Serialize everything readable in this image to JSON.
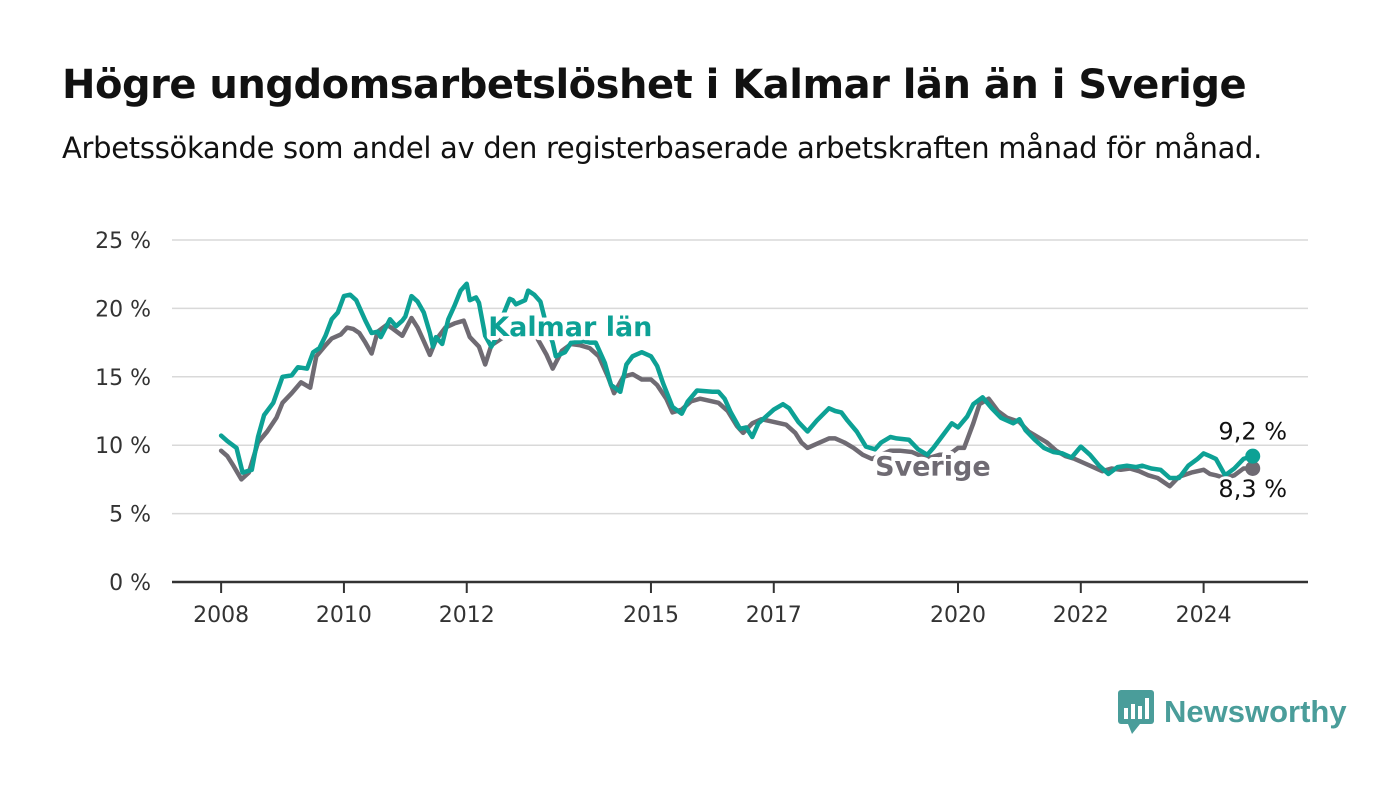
{
  "title": "Högre ungdomsarbetslöshet i Kalmar län än i Sverige",
  "subtitle": "Arbetssökande som andel av den registerbaserade arbetskraften månad för månad.",
  "brand": {
    "name": "Newsworthy",
    "color": "#4a9d9a"
  },
  "chart_data": {
    "type": "line",
    "x_tick_labels": [
      "2008",
      "2010",
      "2012",
      "2015",
      "2017",
      "2020",
      "2022",
      "2024"
    ],
    "y_tick_labels": [
      "0 %",
      "5 %",
      "10 %",
      "15 %",
      "20 %",
      "25 %"
    ],
    "ylim": [
      0,
      25
    ],
    "xlim": [
      2007.2,
      2025.7
    ],
    "grid": true,
    "series": [
      {
        "name": "Kalmar län",
        "color": "#0da195",
        "end_label": "9,2 %",
        "points": [
          [
            2008.0,
            10.7
          ],
          [
            2008.1,
            10.3
          ],
          [
            2008.25,
            9.8
          ],
          [
            2008.35,
            8.0
          ],
          [
            2008.5,
            8.2
          ],
          [
            2008.6,
            10.6
          ],
          [
            2008.7,
            12.2
          ],
          [
            2008.85,
            13.1
          ],
          [
            2009.0,
            15.0
          ],
          [
            2009.15,
            15.1
          ],
          [
            2009.25,
            15.7
          ],
          [
            2009.4,
            15.6
          ],
          [
            2009.5,
            16.8
          ],
          [
            2009.6,
            17.1
          ],
          [
            2009.7,
            18.0
          ],
          [
            2009.8,
            19.2
          ],
          [
            2009.9,
            19.7
          ],
          [
            2010.0,
            20.9
          ],
          [
            2010.1,
            21.0
          ],
          [
            2010.2,
            20.6
          ],
          [
            2010.35,
            19.1
          ],
          [
            2010.45,
            18.2
          ],
          [
            2010.55,
            18.3
          ],
          [
            2010.6,
            17.9
          ],
          [
            2010.75,
            19.2
          ],
          [
            2010.85,
            18.7
          ],
          [
            2010.95,
            19.1
          ],
          [
            2011.0,
            19.4
          ],
          [
            2011.1,
            20.9
          ],
          [
            2011.2,
            20.5
          ],
          [
            2011.3,
            19.7
          ],
          [
            2011.4,
            18.2
          ],
          [
            2011.45,
            17.2
          ],
          [
            2011.5,
            17.9
          ],
          [
            2011.6,
            17.4
          ],
          [
            2011.7,
            19.2
          ],
          [
            2011.8,
            20.2
          ],
          [
            2011.9,
            21.3
          ],
          [
            2012.0,
            21.8
          ],
          [
            2012.05,
            20.6
          ],
          [
            2012.15,
            20.8
          ],
          [
            2012.2,
            20.4
          ],
          [
            2012.3,
            18.0
          ],
          [
            2012.4,
            17.2
          ],
          [
            2012.5,
            18.0
          ],
          [
            2012.6,
            19.6
          ],
          [
            2012.7,
            20.7
          ],
          [
            2012.75,
            20.6
          ],
          [
            2012.8,
            20.3
          ],
          [
            2012.95,
            20.6
          ],
          [
            2013.0,
            21.3
          ],
          [
            2013.1,
            21.0
          ],
          [
            2013.2,
            20.5
          ],
          [
            2013.3,
            18.7
          ],
          [
            2013.4,
            17.5
          ],
          [
            2013.45,
            16.5
          ],
          [
            2013.6,
            16.8
          ],
          [
            2013.7,
            17.5
          ],
          [
            2013.9,
            17.6
          ],
          [
            2014.0,
            17.5
          ],
          [
            2014.1,
            17.5
          ],
          [
            2014.25,
            16.0
          ],
          [
            2014.35,
            14.4
          ],
          [
            2014.5,
            13.9
          ],
          [
            2014.6,
            15.9
          ],
          [
            2014.7,
            16.5
          ],
          [
            2014.85,
            16.8
          ],
          [
            2015.0,
            16.5
          ],
          [
            2015.1,
            15.8
          ],
          [
            2015.2,
            14.5
          ],
          [
            2015.35,
            12.8
          ],
          [
            2015.5,
            12.3
          ],
          [
            2015.6,
            13.2
          ],
          [
            2015.75,
            14.0
          ],
          [
            2016.0,
            13.9
          ],
          [
            2016.1,
            13.9
          ],
          [
            2016.2,
            13.4
          ],
          [
            2016.3,
            12.4
          ],
          [
            2016.45,
            11.2
          ],
          [
            2016.55,
            11.3
          ],
          [
            2016.65,
            10.6
          ],
          [
            2016.75,
            11.6
          ],
          [
            2017.0,
            12.6
          ],
          [
            2017.15,
            13.0
          ],
          [
            2017.25,
            12.7
          ],
          [
            2017.4,
            11.7
          ],
          [
            2017.55,
            11.0
          ],
          [
            2017.7,
            11.8
          ],
          [
            2017.9,
            12.7
          ],
          [
            2018.0,
            12.5
          ],
          [
            2018.1,
            12.4
          ],
          [
            2018.2,
            11.8
          ],
          [
            2018.35,
            11.0
          ],
          [
            2018.5,
            9.9
          ],
          [
            2018.65,
            9.7
          ],
          [
            2018.75,
            10.2
          ],
          [
            2018.9,
            10.6
          ],
          [
            2019.0,
            10.5
          ],
          [
            2019.2,
            10.4
          ],
          [
            2019.35,
            9.7
          ],
          [
            2019.5,
            9.3
          ],
          [
            2019.6,
            9.8
          ],
          [
            2019.75,
            10.7
          ],
          [
            2019.9,
            11.6
          ],
          [
            2020.0,
            11.3
          ],
          [
            2020.15,
            12.1
          ],
          [
            2020.25,
            13.0
          ],
          [
            2020.4,
            13.5
          ],
          [
            2020.55,
            12.7
          ],
          [
            2020.7,
            12.0
          ],
          [
            2020.9,
            11.6
          ],
          [
            2021.0,
            11.9
          ],
          [
            2021.1,
            11.1
          ],
          [
            2021.25,
            10.4
          ],
          [
            2021.4,
            9.8
          ],
          [
            2021.55,
            9.5
          ],
          [
            2021.7,
            9.4
          ],
          [
            2021.85,
            9.1
          ],
          [
            2022.0,
            9.9
          ],
          [
            2022.15,
            9.3
          ],
          [
            2022.3,
            8.5
          ],
          [
            2022.45,
            7.9
          ],
          [
            2022.6,
            8.4
          ],
          [
            2022.75,
            8.5
          ],
          [
            2022.9,
            8.4
          ],
          [
            2023.0,
            8.5
          ],
          [
            2023.15,
            8.3
          ],
          [
            2023.3,
            8.2
          ],
          [
            2023.45,
            7.6
          ],
          [
            2023.6,
            7.6
          ],
          [
            2023.75,
            8.5
          ],
          [
            2023.9,
            9.0
          ],
          [
            2024.0,
            9.4
          ],
          [
            2024.1,
            9.2
          ],
          [
            2024.2,
            9.0
          ],
          [
            2024.35,
            7.8
          ],
          [
            2024.5,
            8.3
          ],
          [
            2024.65,
            9.0
          ],
          [
            2024.8,
            9.2
          ]
        ]
      },
      {
        "name": "Sverige",
        "color": "#6f6b73",
        "end_label": "8,3 %",
        "points": [
          [
            2008.0,
            9.6
          ],
          [
            2008.1,
            9.2
          ],
          [
            2008.2,
            8.5
          ],
          [
            2008.33,
            7.5
          ],
          [
            2008.45,
            8.0
          ],
          [
            2008.6,
            10.2
          ],
          [
            2008.75,
            11.0
          ],
          [
            2008.9,
            12.0
          ],
          [
            2009.0,
            13.1
          ],
          [
            2009.15,
            13.8
          ],
          [
            2009.3,
            14.6
          ],
          [
            2009.45,
            14.2
          ],
          [
            2009.55,
            16.5
          ],
          [
            2009.7,
            17.3
          ],
          [
            2009.8,
            17.8
          ],
          [
            2009.95,
            18.1
          ],
          [
            2010.05,
            18.6
          ],
          [
            2010.15,
            18.5
          ],
          [
            2010.25,
            18.2
          ],
          [
            2010.35,
            17.5
          ],
          [
            2010.45,
            16.7
          ],
          [
            2010.55,
            18.3
          ],
          [
            2010.7,
            18.8
          ],
          [
            2010.8,
            18.5
          ],
          [
            2010.95,
            18.0
          ],
          [
            2011.1,
            19.3
          ],
          [
            2011.2,
            18.6
          ],
          [
            2011.3,
            17.6
          ],
          [
            2011.4,
            16.6
          ],
          [
            2011.5,
            17.7
          ],
          [
            2011.65,
            18.6
          ],
          [
            2011.8,
            18.9
          ],
          [
            2011.95,
            19.1
          ],
          [
            2012.05,
            17.9
          ],
          [
            2012.2,
            17.2
          ],
          [
            2012.3,
            15.9
          ],
          [
            2012.4,
            17.3
          ],
          [
            2012.6,
            17.9
          ],
          [
            2012.75,
            18.2
          ],
          [
            2012.9,
            18.4
          ],
          [
            2013.05,
            18.5
          ],
          [
            2013.15,
            17.8
          ],
          [
            2013.3,
            16.6
          ],
          [
            2013.4,
            15.6
          ],
          [
            2013.55,
            16.9
          ],
          [
            2013.7,
            17.4
          ],
          [
            2013.85,
            17.3
          ],
          [
            2014.0,
            17.1
          ],
          [
            2014.15,
            16.5
          ],
          [
            2014.3,
            15.0
          ],
          [
            2014.4,
            13.8
          ],
          [
            2014.55,
            15.0
          ],
          [
            2014.7,
            15.2
          ],
          [
            2014.85,
            14.8
          ],
          [
            2015.0,
            14.8
          ],
          [
            2015.1,
            14.4
          ],
          [
            2015.25,
            13.4
          ],
          [
            2015.35,
            12.4
          ],
          [
            2015.5,
            12.6
          ],
          [
            2015.65,
            13.2
          ],
          [
            2015.8,
            13.4
          ],
          [
            2016.0,
            13.2
          ],
          [
            2016.1,
            13.1
          ],
          [
            2016.25,
            12.5
          ],
          [
            2016.4,
            11.4
          ],
          [
            2016.5,
            10.9
          ],
          [
            2016.65,
            11.6
          ],
          [
            2016.8,
            11.9
          ],
          [
            2017.0,
            11.7
          ],
          [
            2017.2,
            11.5
          ],
          [
            2017.35,
            10.9
          ],
          [
            2017.45,
            10.2
          ],
          [
            2017.55,
            9.8
          ],
          [
            2017.7,
            10.1
          ],
          [
            2017.9,
            10.5
          ],
          [
            2018.0,
            10.5
          ],
          [
            2018.15,
            10.2
          ],
          [
            2018.3,
            9.8
          ],
          [
            2018.45,
            9.3
          ],
          [
            2018.6,
            9.0
          ],
          [
            2018.75,
            9.3
          ],
          [
            2018.9,
            9.6
          ],
          [
            2019.05,
            9.6
          ],
          [
            2019.25,
            9.5
          ],
          [
            2019.4,
            9.2
          ],
          [
            2019.55,
            9.1
          ],
          [
            2019.7,
            9.3
          ],
          [
            2019.85,
            9.3
          ],
          [
            2020.0,
            9.8
          ],
          [
            2020.1,
            9.8
          ],
          [
            2020.25,
            11.6
          ],
          [
            2020.35,
            13.0
          ],
          [
            2020.5,
            13.4
          ],
          [
            2020.65,
            12.5
          ],
          [
            2020.8,
            12.0
          ],
          [
            2021.0,
            11.7
          ],
          [
            2021.15,
            11.0
          ],
          [
            2021.3,
            10.6
          ],
          [
            2021.45,
            10.2
          ],
          [
            2021.6,
            9.6
          ],
          [
            2021.75,
            9.2
          ],
          [
            2021.9,
            9.0
          ],
          [
            2022.05,
            8.7
          ],
          [
            2022.2,
            8.4
          ],
          [
            2022.35,
            8.1
          ],
          [
            2022.5,
            8.3
          ],
          [
            2022.65,
            8.2
          ],
          [
            2022.8,
            8.3
          ],
          [
            2022.95,
            8.1
          ],
          [
            2023.1,
            7.8
          ],
          [
            2023.25,
            7.6
          ],
          [
            2023.45,
            7.0
          ],
          [
            2023.6,
            7.7
          ],
          [
            2023.8,
            8.0
          ],
          [
            2024.0,
            8.2
          ],
          [
            2024.1,
            7.9
          ],
          [
            2024.2,
            7.8
          ],
          [
            2024.35,
            7.6
          ],
          [
            2024.5,
            7.8
          ],
          [
            2024.65,
            8.3
          ],
          [
            2024.8,
            8.3
          ]
        ]
      }
    ]
  }
}
